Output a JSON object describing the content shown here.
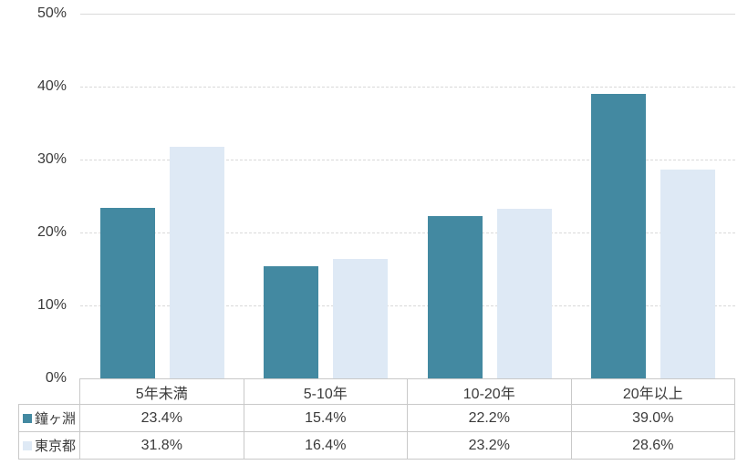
{
  "chart_data": {
    "type": "bar",
    "categories": [
      "5年未満",
      "5-10年",
      "10-20年",
      "20年以上"
    ],
    "series": [
      {
        "name": "鐘ヶ淵",
        "color": "#4389A1",
        "values": [
          23.4,
          15.4,
          22.2,
          39.0
        ],
        "display": [
          "23.4%",
          "15.4%",
          "22.2%",
          "39.0%"
        ]
      },
      {
        "name": "東京都",
        "color": "#DEE9F5",
        "values": [
          31.8,
          16.4,
          23.2,
          28.6
        ],
        "display": [
          "31.8%",
          "16.4%",
          "23.2%",
          "28.6%"
        ]
      }
    ],
    "y_axis": {
      "min": 0,
      "max": 50,
      "step": 10,
      "tick_labels": [
        "0%",
        "10%",
        "20%",
        "30%",
        "40%",
        "50%"
      ]
    },
    "grid": true,
    "legend_position": "data-table-left"
  },
  "colors": {
    "series1": "#4389A1",
    "series2": "#DEE9F5",
    "gridline": "#D9D9D9",
    "table_border": "#C9C9C9",
    "text": "#3B3B3B",
    "background": "#FFFFFF"
  }
}
